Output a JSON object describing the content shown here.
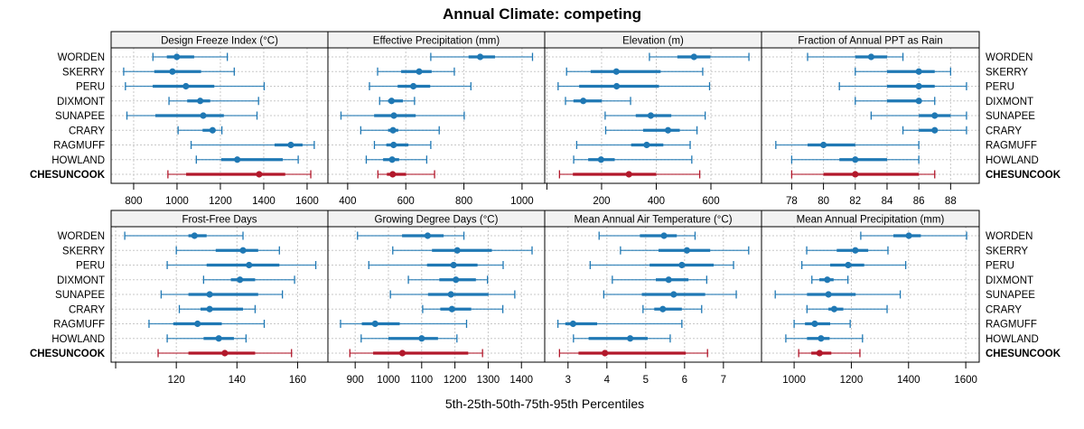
{
  "chart_data": {
    "type": "dotplot-percentile",
    "title": "Annual Climate: competing",
    "xlabel": "5th-25th-50th-75th-95th Percentiles",
    "ylabel": "",
    "legend": "none",
    "grid": true,
    "colors": {
      "default": "#1f78b4",
      "highlight": "#b2182b",
      "strip_bg": "#f2f2f2",
      "grid": "#c8c8c8"
    },
    "categories": [
      "WORDEN",
      "SKERRY",
      "PERU",
      "DIXMONT",
      "SUNAPEE",
      "CRARY",
      "RAGMUFF",
      "HOWLAND",
      "CHESUNCOOK"
    ],
    "highlight_category": "CHESUNCOOK",
    "percentile_keys": [
      "p5",
      "p25",
      "p50",
      "p75",
      "p95"
    ],
    "panels": [
      {
        "title": "Design Freeze Index (°C)",
        "xlim": [
          696,
          1696
        ],
        "ticks": [
          800,
          1000,
          1200,
          1400,
          1600
        ],
        "rows": [
          [
            889,
            953,
            999,
            1079,
            1232
          ],
          [
            754,
            895,
            979,
            1111,
            1264
          ],
          [
            762,
            888,
            1041,
            1172,
            1402
          ],
          [
            963,
            1047,
            1107,
            1153,
            1376
          ],
          [
            769,
            900,
            1121,
            1216,
            1369
          ],
          [
            1005,
            1118,
            1164,
            1177,
            1207
          ],
          [
            1065,
            1450,
            1525,
            1579,
            1633
          ],
          [
            1089,
            1204,
            1278,
            1488,
            1559
          ],
          [
            958,
            1042,
            1379,
            1499,
            1617
          ]
        ]
      },
      {
        "title": "Effective Precipitation (mm)",
        "xlim": [
          332,
          1078
        ],
        "ticks": [
          400,
          600,
          800,
          1000
        ],
        "rows": [
          [
            686,
            816,
            856,
            907,
            1036
          ],
          [
            503,
            584,
            646,
            689,
            767
          ],
          [
            475,
            572,
            626,
            684,
            824
          ],
          [
            510,
            539,
            551,
            590,
            630
          ],
          [
            377,
            491,
            559,
            634,
            801
          ],
          [
            445,
            539,
            556,
            574,
            715
          ],
          [
            492,
            533,
            558,
            609,
            686
          ],
          [
            464,
            522,
            553,
            577,
            672
          ],
          [
            504,
            535,
            555,
            601,
            699
          ]
        ]
      },
      {
        "title": "Elevation (m)",
        "xlim": [
          -8,
          785
        ],
        "ticks": [
          0,
          200,
          400,
          600
        ],
        "tick_labels": [
          "",
          "200",
          "400",
          "600"
        ],
        "rows": [
          [
            375,
            477,
            538,
            598,
            739
          ],
          [
            72,
            160,
            254,
            416,
            570
          ],
          [
            41,
            118,
            255,
            410,
            595
          ],
          [
            68,
            97,
            133,
            201,
            306
          ],
          [
            213,
            325,
            380,
            455,
            579
          ],
          [
            215,
            352,
            443,
            486,
            549
          ],
          [
            109,
            308,
            365,
            426,
            524
          ],
          [
            98,
            151,
            198,
            248,
            530
          ],
          [
            46,
            95,
            300,
            400,
            559
          ]
        ]
      },
      {
        "title": "Fraction of Annual PPT as Rain",
        "xlim": [
          76.1,
          89.8
        ],
        "ticks": [
          78,
          80,
          82,
          84,
          86,
          88
        ],
        "rows": [
          [
            79,
            82,
            83,
            84,
            85
          ],
          [
            82,
            84,
            86,
            87,
            88
          ],
          [
            81,
            84,
            86,
            87,
            89
          ],
          [
            82,
            84,
            86,
            86,
            87
          ],
          [
            83,
            86,
            87,
            88,
            89
          ],
          [
            85,
            86,
            87,
            87,
            89
          ],
          [
            77,
            79,
            80,
            82,
            86
          ],
          [
            78,
            81,
            82,
            84,
            86
          ],
          [
            78,
            80,
            82,
            86,
            87
          ]
        ]
      },
      {
        "title": "Frost-Free Days",
        "xlim": [
          98.5,
          170
        ],
        "ticks": [
          100,
          120,
          140,
          160
        ],
        "tick_labels": [
          "",
          "120",
          "140",
          "160"
        ],
        "rows": [
          [
            103,
            124,
            126,
            130,
            142
          ],
          [
            120,
            133,
            142,
            147,
            154
          ],
          [
            117,
            130,
            144,
            154,
            166
          ],
          [
            129,
            138,
            141,
            146,
            159
          ],
          [
            115,
            124,
            131,
            147,
            155
          ],
          [
            121,
            128,
            131,
            142,
            146
          ],
          [
            111,
            119,
            127,
            135,
            149
          ],
          [
            117,
            129,
            134,
            139,
            143
          ],
          [
            114,
            124,
            136,
            146,
            158
          ]
        ]
      },
      {
        "title": "Growing Degree Days (°C)",
        "xlim": [
          818,
          1470
        ],
        "ticks": [
          900,
          1000,
          1100,
          1200,
          1300,
          1400
        ],
        "rows": [
          [
            907,
            1041,
            1118,
            1166,
            1227
          ],
          [
            1013,
            1131,
            1207,
            1311,
            1432
          ],
          [
            941,
            1116,
            1196,
            1268,
            1345
          ],
          [
            1060,
            1153,
            1203,
            1263,
            1298
          ],
          [
            1006,
            1119,
            1188,
            1301,
            1380
          ],
          [
            1103,
            1156,
            1191,
            1249,
            1344
          ],
          [
            856,
            920,
            960,
            1034,
            1235
          ],
          [
            918,
            1000,
            1100,
            1149,
            1206
          ],
          [
            884,
            954,
            1042,
            1240,
            1283
          ]
        ]
      },
      {
        "title": "Mean Annual Air Temperature (°C)",
        "xlim": [
          2.4,
          7.98
        ],
        "ticks": [
          3,
          4,
          5,
          6,
          7
        ],
        "rows": [
          [
            3.8,
            4.85,
            5.47,
            5.8,
            6.27
          ],
          [
            4.35,
            5.33,
            6.06,
            6.66,
            7.65
          ],
          [
            3.57,
            5.1,
            5.93,
            6.75,
            7.26
          ],
          [
            4.14,
            5.26,
            5.59,
            6.1,
            6.57
          ],
          [
            3.92,
            4.9,
            5.72,
            6.53,
            7.33
          ],
          [
            4.93,
            5.22,
            5.44,
            5.93,
            6.44
          ],
          [
            2.74,
            2.93,
            3.13,
            3.75,
            5.93
          ],
          [
            3.14,
            3.53,
            4.6,
            5.05,
            5.63
          ],
          [
            2.78,
            3.27,
            3.95,
            6.03,
            6.59
          ]
        ]
      },
      {
        "title": "Mean Annual Precipitation (mm)",
        "xlim": [
          886,
          1647
        ],
        "ticks": [
          1000,
          1200,
          1400,
          1600
        ],
        "rows": [
          [
            1233,
            1347,
            1401,
            1443,
            1603
          ],
          [
            1044,
            1149,
            1214,
            1259,
            1328
          ],
          [
            1027,
            1126,
            1189,
            1245,
            1390
          ],
          [
            1062,
            1088,
            1116,
            1138,
            1188
          ],
          [
            934,
            1045,
            1120,
            1215,
            1371
          ],
          [
            1045,
            1120,
            1140,
            1172,
            1325
          ],
          [
            1000,
            1038,
            1072,
            1126,
            1196
          ],
          [
            971,
            1045,
            1094,
            1124,
            1239
          ],
          [
            1016,
            1060,
            1089,
            1130,
            1230
          ]
        ]
      }
    ]
  }
}
